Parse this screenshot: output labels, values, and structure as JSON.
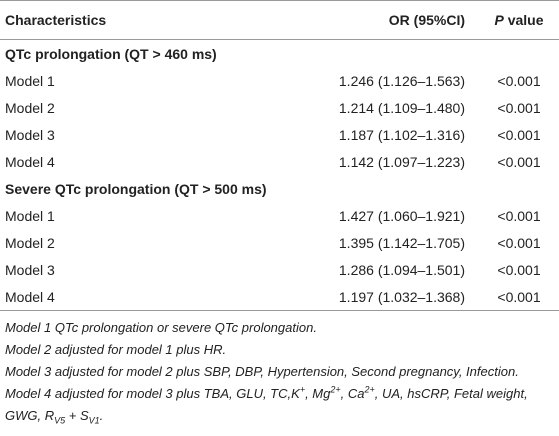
{
  "table": {
    "header": [
      "Characteristics",
      "OR (95%CI)",
      [
        "P",
        " value"
      ]
    ],
    "sections": [
      {
        "title": "QTc prolongation (QT > 460 ms)",
        "rows": [
          [
            "Model 1",
            "1.246 (1.126–1.563)",
            "<0.001"
          ],
          [
            "Model 2",
            "1.214 (1.109–1.480)",
            "<0.001"
          ],
          [
            "Model 3",
            "1.187 (1.102–1.316)",
            "<0.001"
          ],
          [
            "Model 4",
            "1.142 (1.097–1.223)",
            "<0.001"
          ]
        ]
      },
      {
        "title": "Severe QTc prolongation (QT > 500 ms)",
        "rows": [
          [
            "Model 1",
            "1.427 (1.060–1.921)",
            "<0.001"
          ],
          [
            "Model 2",
            "1.395 (1.142–1.705)",
            "<0.001"
          ],
          [
            "Model 3",
            "1.286 (1.094–1.501)",
            "<0.001"
          ],
          [
            "Model 4",
            "1.197 (1.032–1.368)",
            "<0.001"
          ]
        ]
      }
    ]
  },
  "footnotes": [
    "Model 1 QTc prolongation or severe QTc prolongation.",
    "Model 2 adjusted for model 1 plus HR.",
    "Model 3 adjusted for model 2 plus SBP, DBP, Hypertension, Second pregnancy, Infection.",
    [
      "Model 4 adjusted for model 3 plus TBA, GLU, TC,K",
      "+",
      ", Mg",
      "2+",
      ", Ca",
      "2+",
      ", UA, hsCRP, Fetal weight, GWG, R",
      "V5",
      " + S",
      "V1",
      "."
    ]
  ]
}
